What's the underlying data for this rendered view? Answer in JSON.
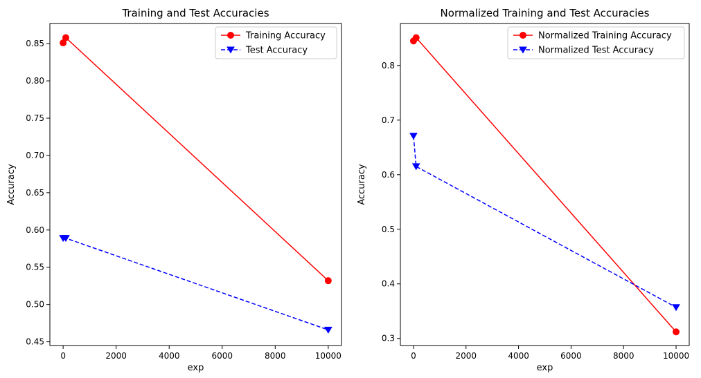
{
  "chart_data": [
    {
      "type": "line",
      "title": "Training and Test Accuracies",
      "xlabel": "exp",
      "ylabel": "Accuracy",
      "xlim": [
        -500,
        10500
      ],
      "ylim": [
        0.445,
        0.877
      ],
      "xticks": [
        0,
        2000,
        4000,
        6000,
        8000,
        10000
      ],
      "xtick_labels": [
        "0",
        "2000",
        "4000",
        "6000",
        "8000",
        "10000"
      ],
      "yticks": [
        0.45,
        0.5,
        0.55,
        0.6,
        0.65,
        0.7,
        0.75,
        0.8,
        0.85
      ],
      "ytick_labels": [
        "0.45",
        "0.50",
        "0.55",
        "0.60",
        "0.65",
        "0.70",
        "0.75",
        "0.80",
        "0.85"
      ],
      "grid": false,
      "legend_position": "top-right",
      "series": [
        {
          "name": "Training Accuracy",
          "color": "#ff0000",
          "linestyle": "solid",
          "marker": "circle",
          "x": [
            0,
            100,
            10000
          ],
          "y": [
            0.851,
            0.858,
            0.532
          ]
        },
        {
          "name": "Test Accuracy",
          "color": "#0000ff",
          "linestyle": "dashed",
          "marker": "triangle-down",
          "x": [
            0,
            100,
            10000
          ],
          "y": [
            0.589,
            0.589,
            0.466
          ]
        }
      ]
    },
    {
      "type": "line",
      "title": "Normalized Training and Test Accuracies",
      "xlabel": "exp",
      "ylabel": "Accuracy",
      "xlim": [
        -500,
        10500
      ],
      "ylim": [
        0.287,
        0.877
      ],
      "xticks": [
        0,
        2000,
        4000,
        6000,
        8000,
        10000
      ],
      "xtick_labels": [
        "0",
        "2000",
        "4000",
        "6000",
        "8000",
        "10000"
      ],
      "yticks": [
        0.3,
        0.4,
        0.5,
        0.6,
        0.7,
        0.8
      ],
      "ytick_labels": [
        "0.3",
        "0.4",
        "0.5",
        "0.6",
        "0.7",
        "0.8"
      ],
      "grid": false,
      "legend_position": "top-right",
      "series": [
        {
          "name": "Normalized Training Accuracy",
          "color": "#ff0000",
          "linestyle": "solid",
          "marker": "circle",
          "x": [
            0,
            100,
            10000
          ],
          "y": [
            0.845,
            0.851,
            0.312
          ]
        },
        {
          "name": "Normalized Test Accuracy",
          "color": "#0000ff",
          "linestyle": "dashed",
          "marker": "triangle-down",
          "x": [
            0,
            100,
            10000
          ],
          "y": [
            0.671,
            0.615,
            0.357
          ]
        }
      ]
    }
  ]
}
